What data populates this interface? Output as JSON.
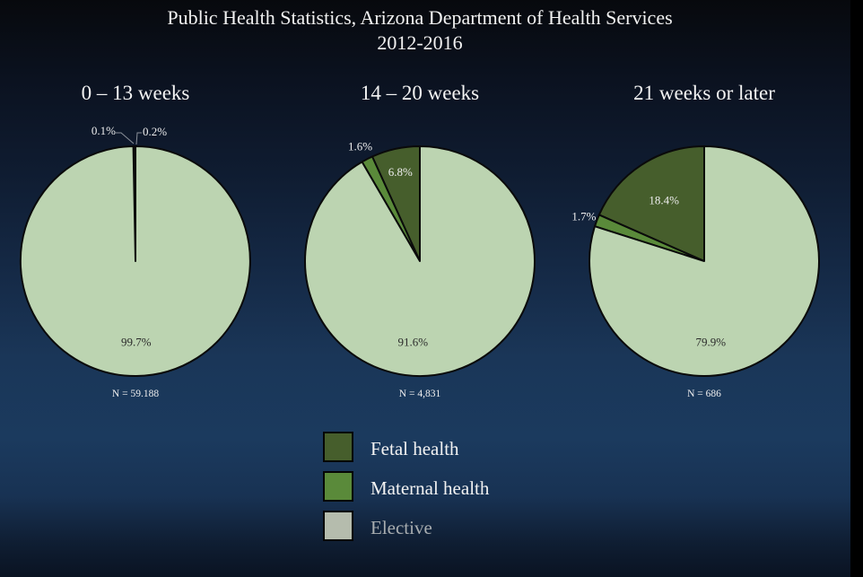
{
  "chart_data": {
    "type": "pie",
    "title": "Public Health Statistics, Arizona Department of Health Services",
    "subtitle": "2012-2016",
    "legend": {
      "placement": "bottom-center",
      "entries": [
        {
          "label": "Fetal health",
          "color": "#465e2c"
        },
        {
          "label": "Maternal health",
          "color": "#5a8a3a"
        },
        {
          "label": "Elective",
          "color": "#bcd4b1"
        }
      ]
    },
    "legend_swatch_colors": [
      "#465e2c",
      "#5a8a3a",
      "#b5bcad"
    ],
    "legend_text_colors": [
      "#f2f2f2",
      "#f2f2f2",
      "#a8adb0"
    ],
    "pies": [
      {
        "title": "0 – 13 weeks",
        "n_label": "N = 59.188",
        "slices": [
          {
            "category": "Fetal health",
            "value": 0.2,
            "label": "0.2%"
          },
          {
            "category": "Maternal health",
            "value": 0.1,
            "label": "0.1%"
          },
          {
            "category": "Elective",
            "value": 99.7,
            "label": "99.7%"
          }
        ]
      },
      {
        "title": "14 – 20 weeks",
        "n_label": "N = 4,831",
        "slices": [
          {
            "category": "Fetal health",
            "value": 6.8,
            "label": "6.8%"
          },
          {
            "category": "Maternal health",
            "value": 1.6,
            "label": "1.6%"
          },
          {
            "category": "Elective",
            "value": 91.6,
            "label": "91.6%"
          }
        ]
      },
      {
        "title": "21 weeks or later",
        "n_label": "N = 686",
        "slices": [
          {
            "category": "Fetal health",
            "value": 18.4,
            "label": "18.4%"
          },
          {
            "category": "Maternal health",
            "value": 1.7,
            "label": "1.7%"
          },
          {
            "category": "Elective",
            "value": 79.9,
            "label": "79.9%"
          }
        ]
      }
    ]
  }
}
